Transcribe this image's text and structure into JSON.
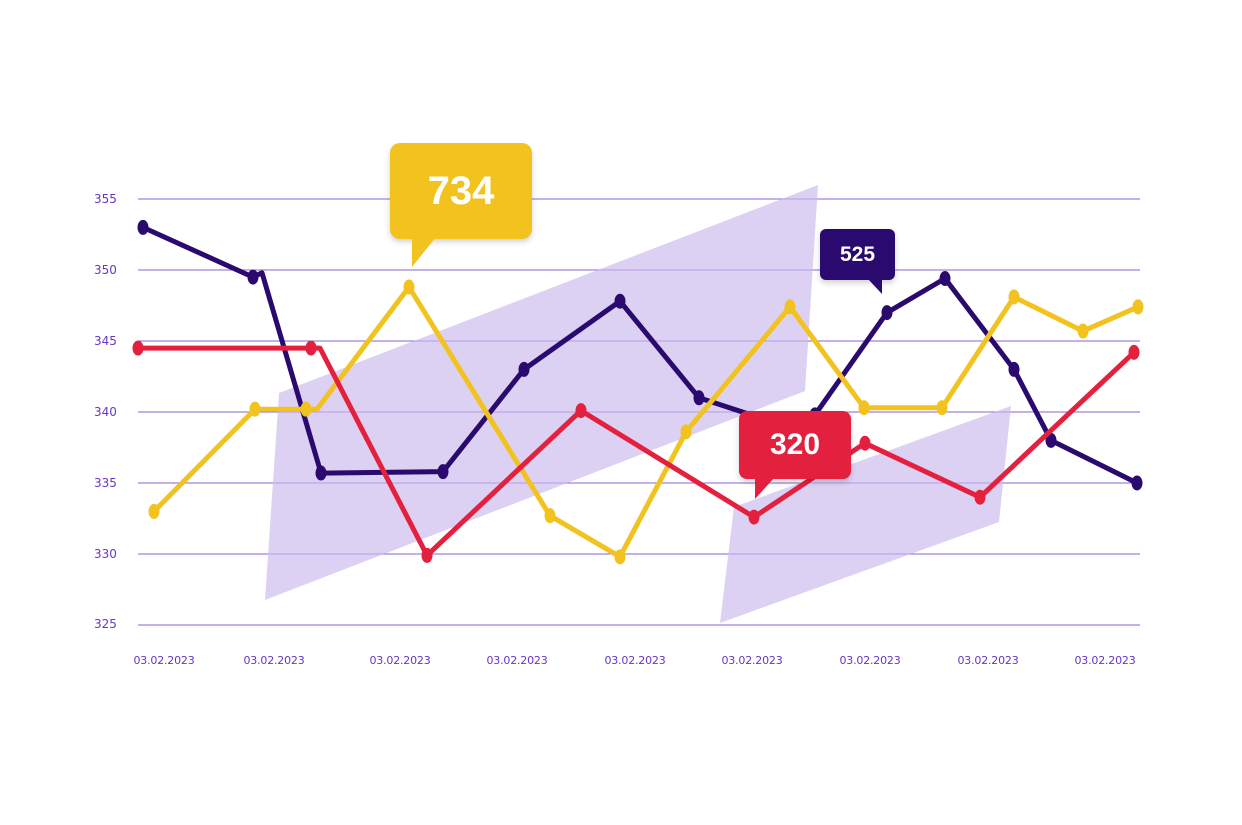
{
  "chart_data": {
    "type": "line",
    "title": "",
    "xlabel": "",
    "ylabel": "",
    "ylim": [
      325,
      355
    ],
    "yticks": [
      355,
      350,
      345,
      340,
      335,
      330,
      325
    ],
    "grid": true,
    "legend": null,
    "x_tick_labels": [
      "03.02.2023",
      "03.02.2023",
      "03.02.2023",
      "03.02.2023",
      "03.02.2023",
      "03.02.2023",
      "03.02.2023",
      "03.02.2023",
      "03.02.2023"
    ],
    "series": [
      {
        "name": "purple",
        "color": "#2a0a6e",
        "points": [
          [
            143,
            353.0
          ],
          [
            253,
            349.5
          ],
          [
            262,
            349.8
          ],
          [
            321,
            335.7
          ],
          [
            443,
            335.8
          ],
          [
            524,
            343.0
          ],
          [
            620,
            347.8
          ],
          [
            699,
            341.0
          ],
          [
            760,
            339.6
          ],
          [
            815,
            339.8
          ],
          [
            887,
            347.0
          ],
          [
            945,
            349.4
          ],
          [
            1014,
            343.0
          ],
          [
            1051,
            338.0
          ],
          [
            1137,
            335.0
          ]
        ]
      },
      {
        "name": "yellow",
        "color": "#f2c21f",
        "points": [
          [
            154,
            333.0
          ],
          [
            255,
            340.2
          ],
          [
            306,
            340.2
          ],
          [
            317,
            340.2
          ],
          [
            409,
            348.8
          ],
          [
            550,
            332.7
          ],
          [
            620,
            329.8
          ],
          [
            686,
            338.6
          ],
          [
            790,
            347.4
          ],
          [
            864,
            340.3
          ],
          [
            942,
            340.3
          ],
          [
            1014,
            348.1
          ],
          [
            1083,
            345.7
          ],
          [
            1138,
            347.4
          ]
        ]
      },
      {
        "name": "red",
        "color": "#e4203f",
        "points": [
          [
            138,
            344.5
          ],
          [
            311,
            344.5
          ],
          [
            320,
            344.5
          ],
          [
            427,
            329.9
          ],
          [
            581,
            340.1
          ],
          [
            754,
            332.6
          ],
          [
            865,
            337.8
          ],
          [
            980,
            334.0
          ],
          [
            1134,
            344.2
          ]
        ]
      }
    ],
    "annotations": [
      {
        "label": "734",
        "color": "#f2c21f",
        "series": "yellow"
      },
      {
        "label": "525",
        "color": "#2a0a6e",
        "series": "purple"
      },
      {
        "label": "320",
        "color": "#e4203f",
        "series": "red"
      }
    ],
    "highlight_regions": [
      {
        "shape": "parallelogram",
        "color": "#c9b9ec"
      },
      {
        "shape": "parallelogram",
        "color": "#c9b9ec"
      }
    ]
  },
  "axis": {
    "y_labels": [
      "355",
      "350",
      "345",
      "340",
      "335",
      "330",
      "325"
    ],
    "x_labels": [
      "03.02.2023",
      "03.02.2023",
      "03.02.2023",
      "03.02.2023",
      "03.02.2023",
      "03.02.2023",
      "03.02.2023",
      "03.02.2023",
      "03.02.2023"
    ]
  },
  "callouts": {
    "yellow": "734",
    "purple": "525",
    "red": "320"
  },
  "colors": {
    "purple": "#2a0a6e",
    "yellow": "#f2c21f",
    "red": "#e4203f",
    "grid": "#8a63d6",
    "tick_text": "#6a35c9",
    "region": "#c9b9ec"
  }
}
